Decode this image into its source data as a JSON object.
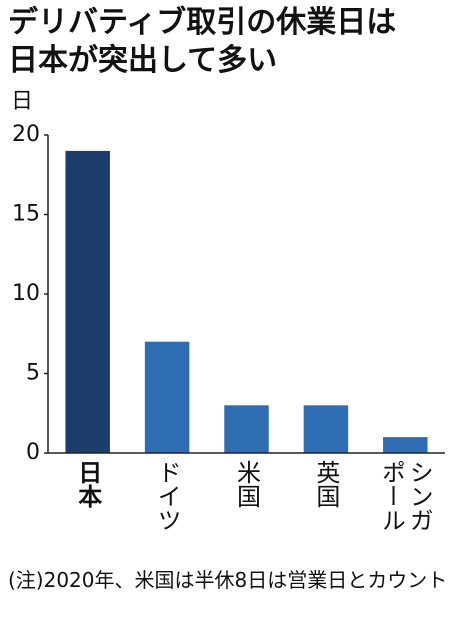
{
  "chart_data": {
    "type": "bar",
    "title": [
      "デリバティブ取引の休業日は",
      "日本が突出して多い"
    ],
    "y_label": "日",
    "categories": [
      "日本",
      "ドイツ",
      "米国",
      "英国",
      "シンガポール"
    ],
    "values": [
      19,
      7,
      3,
      3,
      1
    ],
    "colors": [
      "#1d3d6b",
      "#2f6db3",
      "#2f6db3",
      "#2f6db3",
      "#2f6db3"
    ],
    "highlight_category": 0,
    "ylim": [
      0,
      20
    ],
    "yticks": [
      0,
      5,
      10,
      15,
      20
    ],
    "grid": false,
    "note": "(注)2020年、米国は半休8日は営業日とカウント"
  }
}
